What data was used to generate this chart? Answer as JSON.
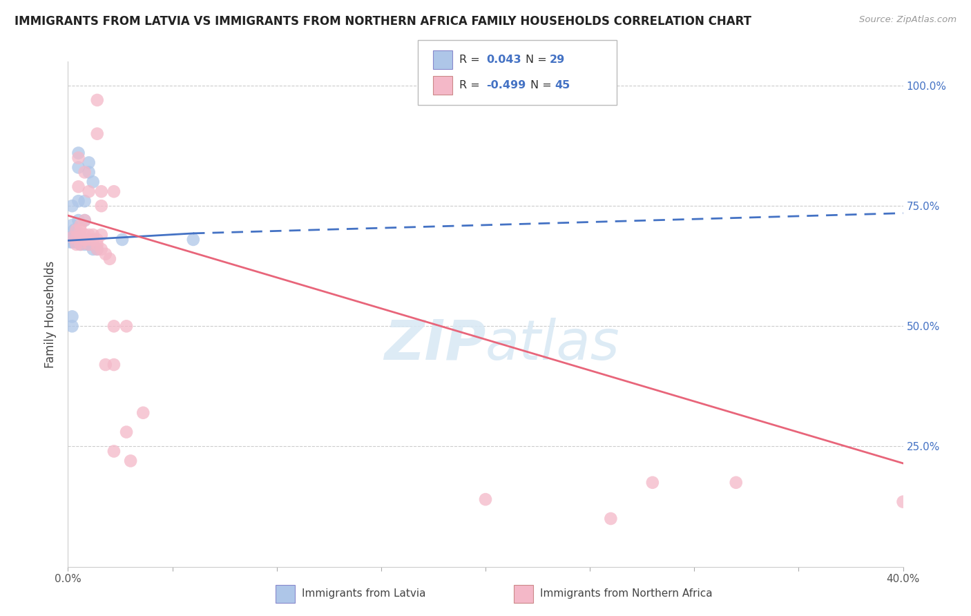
{
  "title": "IMMIGRANTS FROM LATVIA VS IMMIGRANTS FROM NORTHERN AFRICA FAMILY HOUSEHOLDS CORRELATION CHART",
  "source": "Source: ZipAtlas.com",
  "ylabel": "Family Households",
  "y_tick_vals": [
    1.0,
    0.75,
    0.5,
    0.25
  ],
  "y_tick_labels": [
    "100.0%",
    "75.0%",
    "50.0%",
    "25.0%"
  ],
  "x_left_label": "0.0%",
  "x_right_label": "40.0%",
  "legend_label1": "Immigrants from Latvia",
  "legend_label2": "Immigrants from Northern Africa",
  "blue_color": "#aec6e8",
  "pink_color": "#f4b8c8",
  "blue_line_color": "#4472C4",
  "pink_line_color": "#e8657a",
  "grid_color": "#cccccc",
  "background_color": "#ffffff",
  "blue_scatter": [
    [
      0.005,
      0.86
    ],
    [
      0.005,
      0.83
    ],
    [
      0.01,
      0.84
    ],
    [
      0.01,
      0.82
    ],
    [
      0.012,
      0.8
    ],
    [
      0.005,
      0.76
    ],
    [
      0.008,
      0.76
    ],
    [
      0.002,
      0.75
    ],
    [
      0.005,
      0.72
    ],
    [
      0.008,
      0.72
    ],
    [
      0.002,
      0.71
    ],
    [
      0.003,
      0.7
    ],
    [
      0.001,
      0.685
    ],
    [
      0.002,
      0.685
    ],
    [
      0.003,
      0.685
    ],
    [
      0.004,
      0.685
    ],
    [
      0.001,
      0.675
    ],
    [
      0.002,
      0.675
    ],
    [
      0.003,
      0.675
    ],
    [
      0.004,
      0.675
    ],
    [
      0.005,
      0.675
    ],
    [
      0.006,
      0.67
    ],
    [
      0.008,
      0.67
    ],
    [
      0.01,
      0.67
    ],
    [
      0.012,
      0.66
    ],
    [
      0.014,
      0.66
    ],
    [
      0.06,
      0.68
    ],
    [
      0.002,
      0.52
    ],
    [
      0.002,
      0.5
    ],
    [
      0.026,
      0.68
    ]
  ],
  "pink_scatter": [
    [
      0.014,
      0.97
    ],
    [
      0.014,
      0.9
    ],
    [
      0.005,
      0.85
    ],
    [
      0.008,
      0.82
    ],
    [
      0.005,
      0.79
    ],
    [
      0.01,
      0.78
    ],
    [
      0.016,
      0.78
    ],
    [
      0.022,
      0.78
    ],
    [
      0.016,
      0.75
    ],
    [
      0.008,
      0.72
    ],
    [
      0.006,
      0.71
    ],
    [
      0.004,
      0.7
    ],
    [
      0.006,
      0.7
    ],
    [
      0.008,
      0.69
    ],
    [
      0.01,
      0.69
    ],
    [
      0.012,
      0.69
    ],
    [
      0.016,
      0.69
    ],
    [
      0.002,
      0.685
    ],
    [
      0.004,
      0.685
    ],
    [
      0.006,
      0.685
    ],
    [
      0.008,
      0.68
    ],
    [
      0.01,
      0.68
    ],
    [
      0.012,
      0.68
    ],
    [
      0.014,
      0.68
    ],
    [
      0.004,
      0.67
    ],
    [
      0.006,
      0.67
    ],
    [
      0.01,
      0.67
    ],
    [
      0.014,
      0.67
    ],
    [
      0.014,
      0.66
    ],
    [
      0.016,
      0.66
    ],
    [
      0.018,
      0.65
    ],
    [
      0.02,
      0.64
    ],
    [
      0.022,
      0.5
    ],
    [
      0.028,
      0.5
    ],
    [
      0.018,
      0.42
    ],
    [
      0.022,
      0.42
    ],
    [
      0.036,
      0.32
    ],
    [
      0.028,
      0.28
    ],
    [
      0.022,
      0.24
    ],
    [
      0.03,
      0.22
    ],
    [
      0.2,
      0.14
    ],
    [
      0.28,
      0.175
    ],
    [
      0.32,
      0.175
    ],
    [
      0.26,
      0.1
    ],
    [
      0.4,
      0.135
    ]
  ],
  "blue_line_solid": [
    [
      0.0,
      0.06
    ],
    [
      0.678,
      0.693
    ]
  ],
  "blue_line_dashed": [
    [
      0.06,
      0.4
    ],
    [
      0.693,
      0.735
    ]
  ],
  "pink_line": [
    [
      0.0,
      0.4
    ],
    [
      0.73,
      0.215
    ]
  ],
  "xlim": [
    0.0,
    0.4
  ],
  "ylim": [
    0.0,
    1.05
  ]
}
